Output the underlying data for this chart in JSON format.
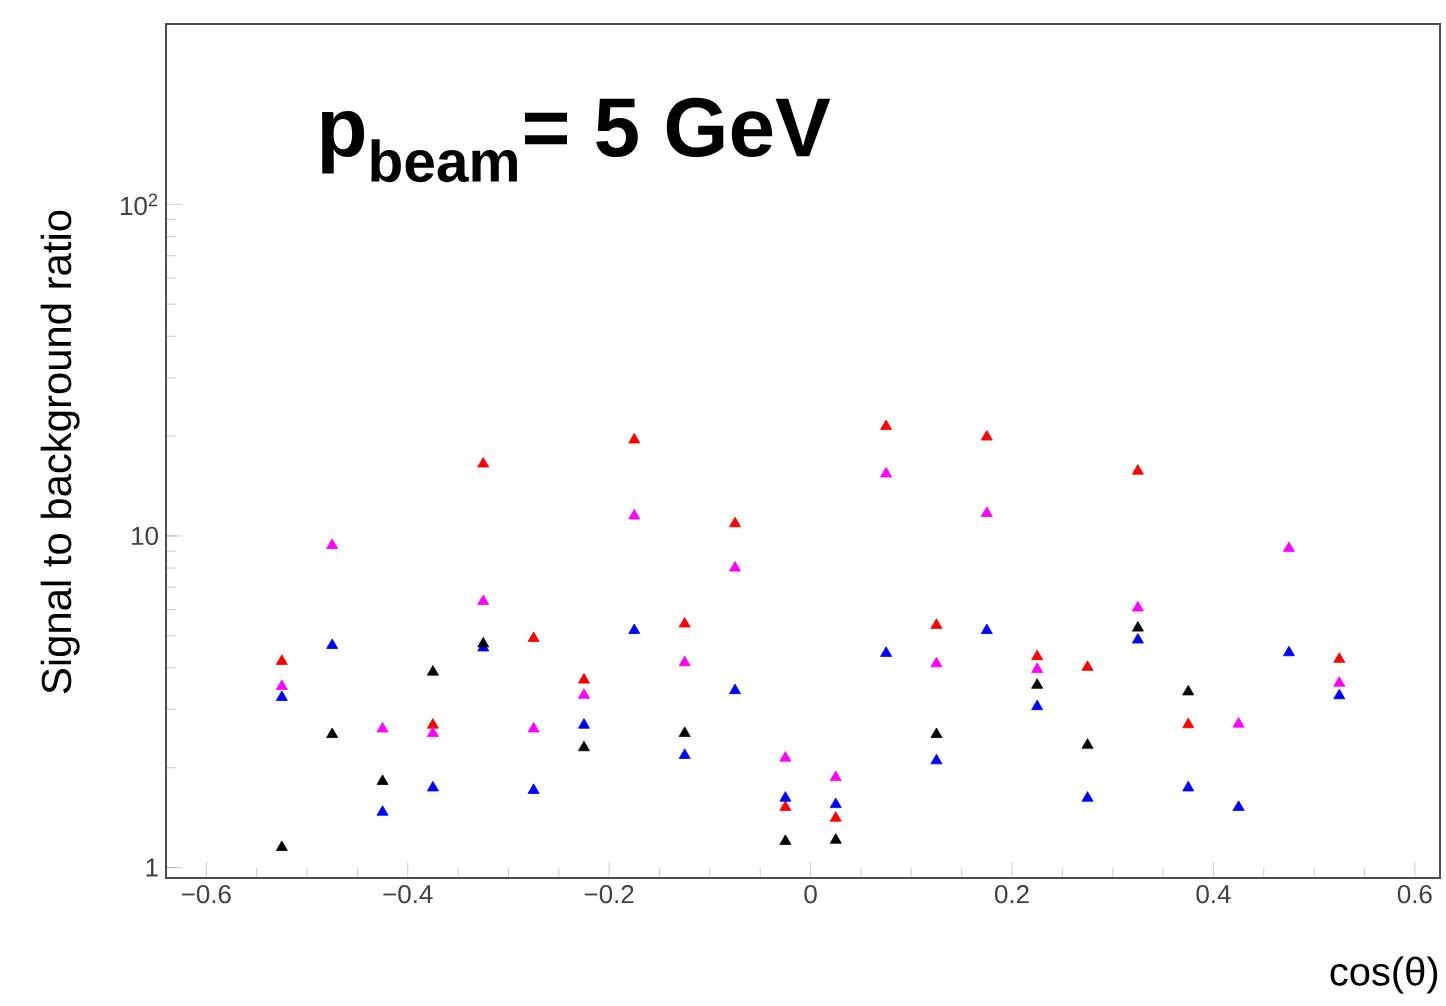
{
  "chart_data": {
    "type": "scatter",
    "title": "p$_{beam}$= 5 GeV",
    "xlabel": "cos(θ)",
    "ylabel": "Signal to background ratio",
    "x": [
      -0.525,
      -0.475,
      -0.425,
      -0.375,
      -0.325,
      -0.275,
      -0.225,
      -0.175,
      -0.125,
      -0.075,
      -0.025,
      0.025,
      0.075,
      0.125,
      0.175,
      0.225,
      0.275,
      0.325,
      0.375,
      0.425,
      0.475,
      0.525
    ],
    "series": [
      {
        "color": "#ff0000",
        "values": [
          4.19,
          null,
          null,
          2.69,
          16.5,
          4.91,
          3.68,
          19.5,
          5.43,
          10.9,
          1.52,
          1.41,
          21.4,
          5.38,
          19.9,
          4.33,
          4.02,
          15.7,
          2.7,
          null,
          null,
          4.25
        ]
      },
      {
        "color": "#ff00ff",
        "values": [
          3.52,
          9.37,
          2.62,
          2.54,
          6.35,
          2.62,
          3.31,
          11.5,
          4.15,
          8.01,
          2.14,
          1.87,
          15.4,
          4.12,
          11.7,
          3.96,
          null,
          6.07,
          null,
          2.71,
          9.17,
          3.6
        ]
      },
      {
        "color": "#0000ff",
        "values": [
          3.26,
          4.68,
          1.47,
          1.74,
          4.6,
          1.71,
          2.69,
          5.19,
          2.18,
          3.42,
          1.62,
          1.55,
          4.43,
          2.1,
          5.19,
          3.06,
          1.62,
          4.86,
          1.74,
          1.52,
          4.45,
          3.3
        ]
      },
      {
        "color": "#000000",
        "values": [
          1.15,
          2.52,
          1.82,
          3.89,
          4.73,
          null,
          2.3,
          null,
          2.54,
          null,
          1.2,
          1.21,
          null,
          2.52,
          null,
          3.55,
          2.34,
          5.28,
          3.39,
          null,
          null,
          null
        ]
      }
    ],
    "xlim": [
      -0.64,
      0.625
    ],
    "ylim": [
      0.93,
      350
    ],
    "xticks": [
      {
        "value": -0.6,
        "label": "−0.6"
      },
      {
        "value": -0.4,
        "label": "−0.4"
      },
      {
        "value": -0.2,
        "label": "−0.2"
      },
      0,
      0.2,
      0.4,
      0.6
    ],
    "yticks": [
      1,
      10,
      {
        "value": 100,
        "label": "10$^{2}$"
      }
    ],
    "log": "y",
    "marker": "triangle",
    "grid": false
  }
}
